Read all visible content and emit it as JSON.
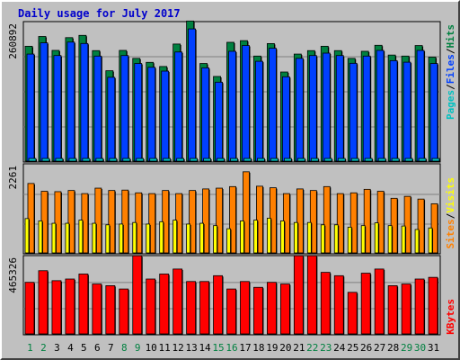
{
  "title": "Daily usage for July 2017",
  "chart_data": [
    {
      "type": "bar",
      "panel": "top",
      "max_label": "260892",
      "ylim": [
        0,
        260892
      ],
      "legend": [
        "Pages",
        "/",
        "Files",
        "/",
        "Hits"
      ],
      "legend_colors": {
        "pages": "#00c0c0",
        "files": "#0040ff",
        "hits": "#008040"
      },
      "categories": [
        "1",
        "2",
        "3",
        "4",
        "5",
        "6",
        "7",
        "8",
        "9",
        "10",
        "11",
        "12",
        "13",
        "14",
        "15",
        "16",
        "17",
        "18",
        "19",
        "20",
        "21",
        "22",
        "23",
        "24",
        "25",
        "26",
        "27",
        "28",
        "29",
        "30",
        "31"
      ],
      "series": [
        {
          "name": "Hits",
          "values": [
            216180,
            234660,
            208380,
            232440,
            236700,
            207960,
            170100,
            208380,
            193380,
            185880,
            178080,
            220380,
            263700,
            183720,
            159300,
            223620,
            226740,
            197700,
            221220,
            167700,
            201480,
            207960,
            216180,
            207960,
            193380,
            206700,
            218040,
            199620,
            197700,
            217560,
            195720
          ]
        },
        {
          "name": "Files",
          "values": [
            201480,
            222660,
            198720,
            224040,
            221400,
            197700,
            157740,
            198720,
            183720,
            176580,
            169380,
            205380,
            248880,
            175560,
            148560,
            206700,
            217560,
            187860,
            212460,
            158700,
            193380,
            198720,
            203280,
            198720,
            184080,
            197700,
            208380,
            189120,
            186180,
            208380,
            183720
          ]
        },
        {
          "name": "Pages",
          "values": [
            5000,
            5000,
            5000,
            5000,
            5000,
            5000,
            5000,
            5000,
            5000,
            5000,
            5000,
            5000,
            5000,
            5000,
            5000,
            5000,
            5000,
            5000,
            5000,
            5000,
            5000,
            5000,
            5000,
            5000,
            5000,
            5000,
            5000,
            5000,
            5000,
            5000,
            5000
          ]
        }
      ],
      "weekend_days": [
        "1",
        "2",
        "8",
        "9",
        "15",
        "16",
        "22",
        "23",
        "29",
        "30"
      ]
    },
    {
      "type": "bar",
      "panel": "middle",
      "max_label": "2261",
      "ylim": [
        0,
        2261
      ],
      "legend": [
        "Sites",
        "/",
        "Visits"
      ],
      "legend_colors": {
        "sites": "#ff8000",
        "visits": "#ffff00"
      },
      "series": [
        {
          "name": "Visits",
          "values": [
            880,
            820,
            760,
            760,
            840,
            760,
            720,
            740,
            780,
            740,
            800,
            840,
            740,
            760,
            700,
            620,
            820,
            840,
            890,
            820,
            780,
            780,
            720,
            720,
            660,
            700,
            770,
            700,
            690,
            600,
            640
          ]
        },
        {
          "name": "Sites",
          "values": [
            1780,
            1580,
            1570,
            1600,
            1520,
            1660,
            1600,
            1610,
            1540,
            1520,
            1600,
            1520,
            1600,
            1640,
            1660,
            1700,
            2080,
            1710,
            1670,
            1520,
            1640,
            1600,
            1700,
            1520,
            1540,
            1630,
            1580,
            1400,
            1450,
            1380,
            1260
          ]
        }
      ]
    },
    {
      "type": "bar",
      "panel": "bottom",
      "max_label": "465326",
      "ylim": [
        0,
        465326
      ],
      "legend": [
        "KBytes"
      ],
      "legend_colors": {
        "kbytes": "#ff0000"
      },
      "series": [
        {
          "name": "KBytes",
          "values": [
            310000,
            380000,
            320000,
            330000,
            360000,
            300000,
            290000,
            270000,
            470000,
            330000,
            360000,
            390000,
            315000,
            315000,
            350000,
            270000,
            315000,
            280000,
            310000,
            300000,
            470000,
            470000,
            370000,
            350000,
            250000,
            365000,
            390000,
            290000,
            300000,
            330000,
            340000
          ]
        }
      ]
    }
  ],
  "colors": {
    "hits": "#008040",
    "files": "#0040ff",
    "pages": "#00c0c0",
    "visits": "#ffff00",
    "sites": "#ff8000",
    "kbytes": "#ff0000",
    "label_blue": "#0000cc",
    "weekend_day": "#008040",
    "weekday": "#000000"
  }
}
